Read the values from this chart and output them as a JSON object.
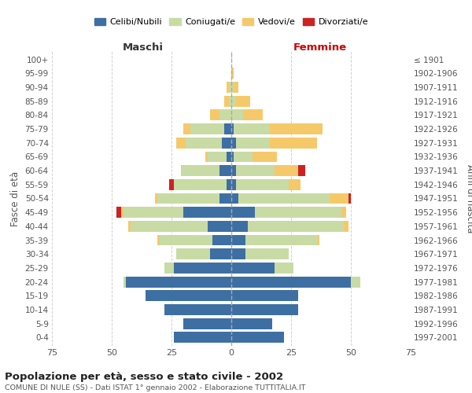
{
  "age_groups": [
    "0-4",
    "5-9",
    "10-14",
    "15-19",
    "20-24",
    "25-29",
    "30-34",
    "35-39",
    "40-44",
    "45-49",
    "50-54",
    "55-59",
    "60-64",
    "65-69",
    "70-74",
    "75-79",
    "80-84",
    "85-89",
    "90-94",
    "95-99",
    "100+"
  ],
  "birth_years": [
    "1997-2001",
    "1992-1996",
    "1987-1991",
    "1982-1986",
    "1977-1981",
    "1972-1976",
    "1967-1971",
    "1962-1966",
    "1957-1961",
    "1952-1956",
    "1947-1951",
    "1942-1946",
    "1937-1941",
    "1932-1936",
    "1927-1931",
    "1922-1926",
    "1917-1921",
    "1912-1916",
    "1907-1911",
    "1902-1906",
    "≤ 1901"
  ],
  "male": {
    "celibi": [
      24,
      20,
      28,
      36,
      44,
      24,
      9,
      8,
      10,
      20,
      5,
      2,
      5,
      2,
      4,
      3,
      0,
      0,
      0,
      0,
      0
    ],
    "coniugati": [
      0,
      0,
      0,
      0,
      1,
      4,
      14,
      22,
      32,
      25,
      26,
      22,
      16,
      8,
      15,
      14,
      5,
      1,
      1,
      0,
      0
    ],
    "vedovi": [
      0,
      0,
      0,
      0,
      0,
      0,
      0,
      1,
      1,
      1,
      1,
      0,
      0,
      1,
      4,
      3,
      4,
      2,
      1,
      0,
      0
    ],
    "divorziati": [
      0,
      0,
      0,
      0,
      0,
      0,
      0,
      0,
      0,
      2,
      0,
      2,
      0,
      0,
      0,
      0,
      0,
      0,
      0,
      0,
      0
    ]
  },
  "female": {
    "nubili": [
      22,
      17,
      28,
      28,
      50,
      18,
      6,
      6,
      7,
      10,
      3,
      2,
      2,
      1,
      2,
      1,
      0,
      0,
      0,
      0,
      0
    ],
    "coniugate": [
      0,
      0,
      0,
      0,
      4,
      8,
      18,
      30,
      40,
      36,
      38,
      22,
      16,
      8,
      14,
      15,
      5,
      2,
      1,
      0,
      0
    ],
    "vedove": [
      0,
      0,
      0,
      0,
      0,
      0,
      0,
      1,
      2,
      2,
      8,
      5,
      10,
      10,
      20,
      22,
      8,
      6,
      2,
      1,
      0
    ],
    "divorziate": [
      0,
      0,
      0,
      0,
      0,
      0,
      0,
      0,
      0,
      0,
      1,
      0,
      3,
      0,
      0,
      0,
      0,
      0,
      0,
      0,
      0
    ]
  },
  "colors": {
    "celibi": "#3e6fa3",
    "coniugati": "#c8dba4",
    "vedovi": "#f5c96a",
    "divorziati": "#cc2222"
  },
  "title": "Popolazione per età, sesso e stato civile - 2002",
  "subtitle": "COMUNE DI NULE (SS) - Dati ISTAT 1° gennaio 2002 - Elaborazione TUTTITALIA.IT",
  "xlabel_left": "Maschi",
  "xlabel_right": "Femmine",
  "ylabel_left": "Fasce di età",
  "ylabel_right": "Anni di nascita",
  "legend_labels": [
    "Celibi/Nubili",
    "Coniugati/e",
    "Vedovi/e",
    "Divorziati/e"
  ],
  "xlim": 75,
  "background_color": "#ffffff",
  "grid_color": "#cccccc"
}
